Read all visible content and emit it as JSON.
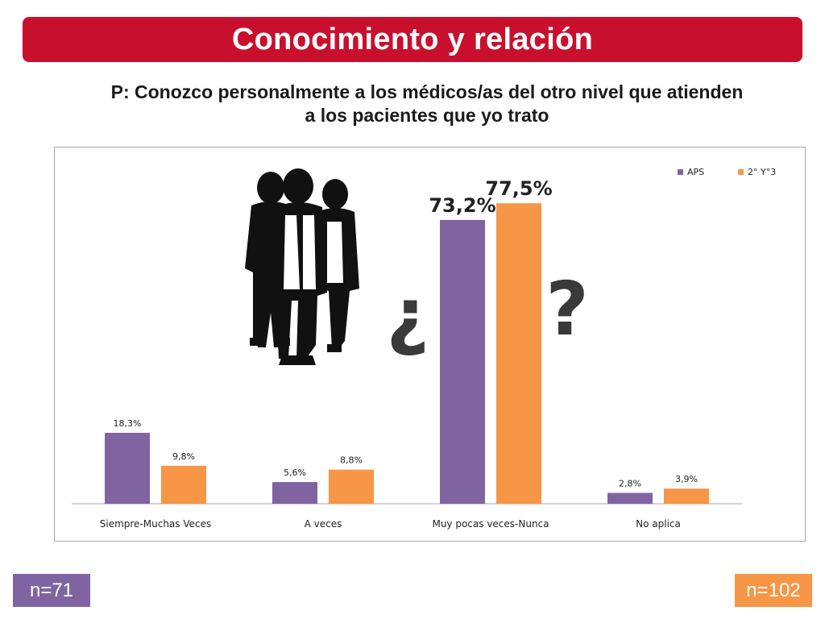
{
  "header": {
    "title": "Conocimiento y relación"
  },
  "question": {
    "line1": "P: Conozco personalmente a los médicos/as del otro nivel que atienden",
    "line2": "a los pacientes que yo trato"
  },
  "colors": {
    "title_bar": "#c8102e",
    "aps": "#8064a2",
    "second": "#f79646",
    "axis": "#a6a6a6",
    "silhouette": "#111111"
  },
  "decorations": {
    "left_mark": "¿",
    "right_mark": "?",
    "illustration": "doctors-silhouette-icon"
  },
  "chart_data": {
    "type": "bar",
    "categories": [
      "Siempre-Muchas Veces",
      "A veces",
      "Muy pocas veces-Nunca",
      "No aplica"
    ],
    "series": [
      {
        "name": "APS",
        "values": [
          18.3,
          5.6,
          73.2,
          2.8
        ],
        "labels": [
          "18,3%",
          "5,6%",
          "73,2%",
          "2,8%"
        ]
      },
      {
        "name": "2° Y°3",
        "values": [
          9.8,
          8.8,
          77.5,
          3.9
        ],
        "labels": [
          "9,8%",
          "8,8%",
          "77,5%",
          "3,9%"
        ]
      }
    ],
    "ylim": [
      0,
      79
    ],
    "legend": "top-right",
    "grid": false,
    "xlabel": "",
    "ylabel": "",
    "title": ""
  },
  "footer": {
    "left_n": "n=71",
    "right_n": "n=102"
  }
}
